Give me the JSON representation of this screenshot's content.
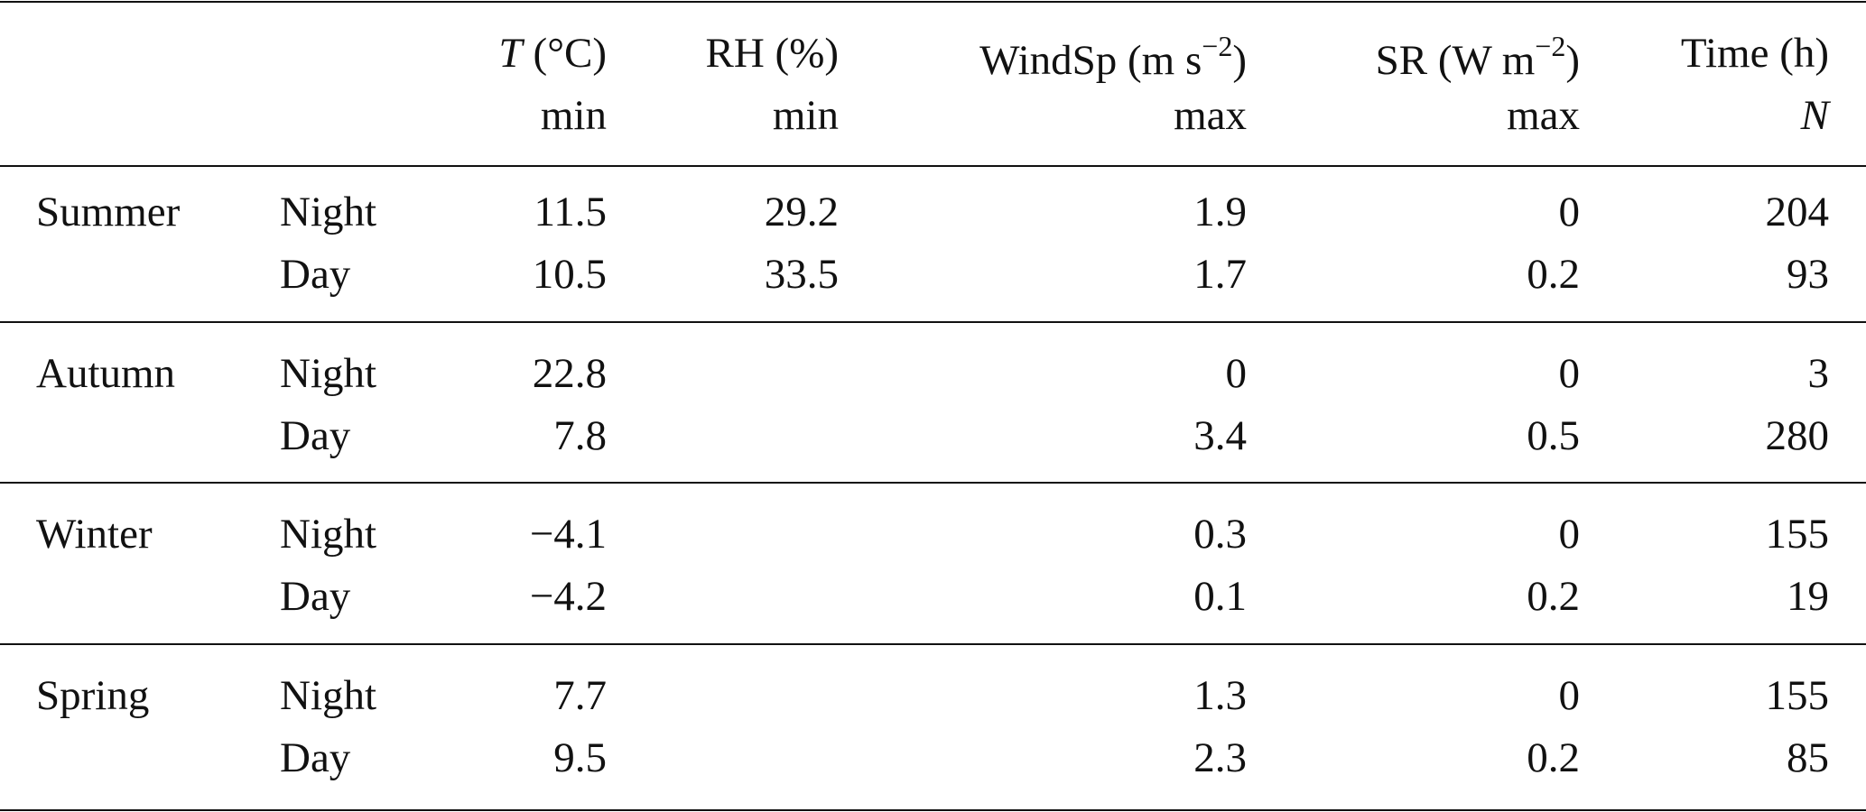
{
  "table": {
    "header": [
      {
        "segments": [
          {
            "text": "T",
            "style": "italic"
          },
          {
            "text": "(°C)"
          }
        ],
        "stat": {
          "text": "min"
        }
      },
      {
        "segments": [
          {
            "text": "RH (%)"
          }
        ],
        "stat": {
          "text": "min"
        }
      },
      {
        "segments": [
          {
            "text": "WindSp (m s"
          },
          {
            "text": "−2",
            "style": "sup"
          },
          {
            "text": ")"
          }
        ],
        "stat": {
          "text": "max"
        }
      },
      {
        "segments": [
          {
            "text": "SR (W m"
          },
          {
            "text": "−2",
            "style": "sup"
          },
          {
            "text": ")"
          }
        ],
        "stat": {
          "text": "max"
        }
      },
      {
        "segments": [
          {
            "text": "Time (h)"
          }
        ],
        "stat": {
          "text": "N",
          "style": "italic"
        }
      }
    ],
    "groups": [
      {
        "season": "Summer",
        "rows": [
          {
            "period": "Night",
            "cells": [
              "11.5",
              "29.2",
              "1.9",
              "0",
              "204"
            ]
          },
          {
            "period": "Day",
            "cells": [
              "10.5",
              "33.5",
              "1.7",
              "0.2",
              "93"
            ]
          }
        ]
      },
      {
        "season": "Autumn",
        "rows": [
          {
            "period": "Night",
            "cells": [
              "22.8",
              null,
              "0",
              "0",
              "3"
            ]
          },
          {
            "period": "Day",
            "cells": [
              "7.8",
              null,
              "3.4",
              "0.5",
              "280"
            ]
          }
        ]
      },
      {
        "season": "Winter",
        "rows": [
          {
            "period": "Night",
            "cells": [
              "−4.1",
              null,
              "0.3",
              "0",
              "155"
            ]
          },
          {
            "period": "Day",
            "cells": [
              "−4.2",
              null,
              "0.1",
              "0.2",
              "19"
            ]
          }
        ]
      },
      {
        "season": "Spring",
        "rows": [
          {
            "period": "Night",
            "cells": [
              "7.7",
              null,
              "1.3",
              "0",
              "155"
            ]
          },
          {
            "period": "Day",
            "cells": [
              "9.5",
              null,
              "2.3",
              "0.2",
              "85"
            ]
          }
        ]
      }
    ]
  }
}
